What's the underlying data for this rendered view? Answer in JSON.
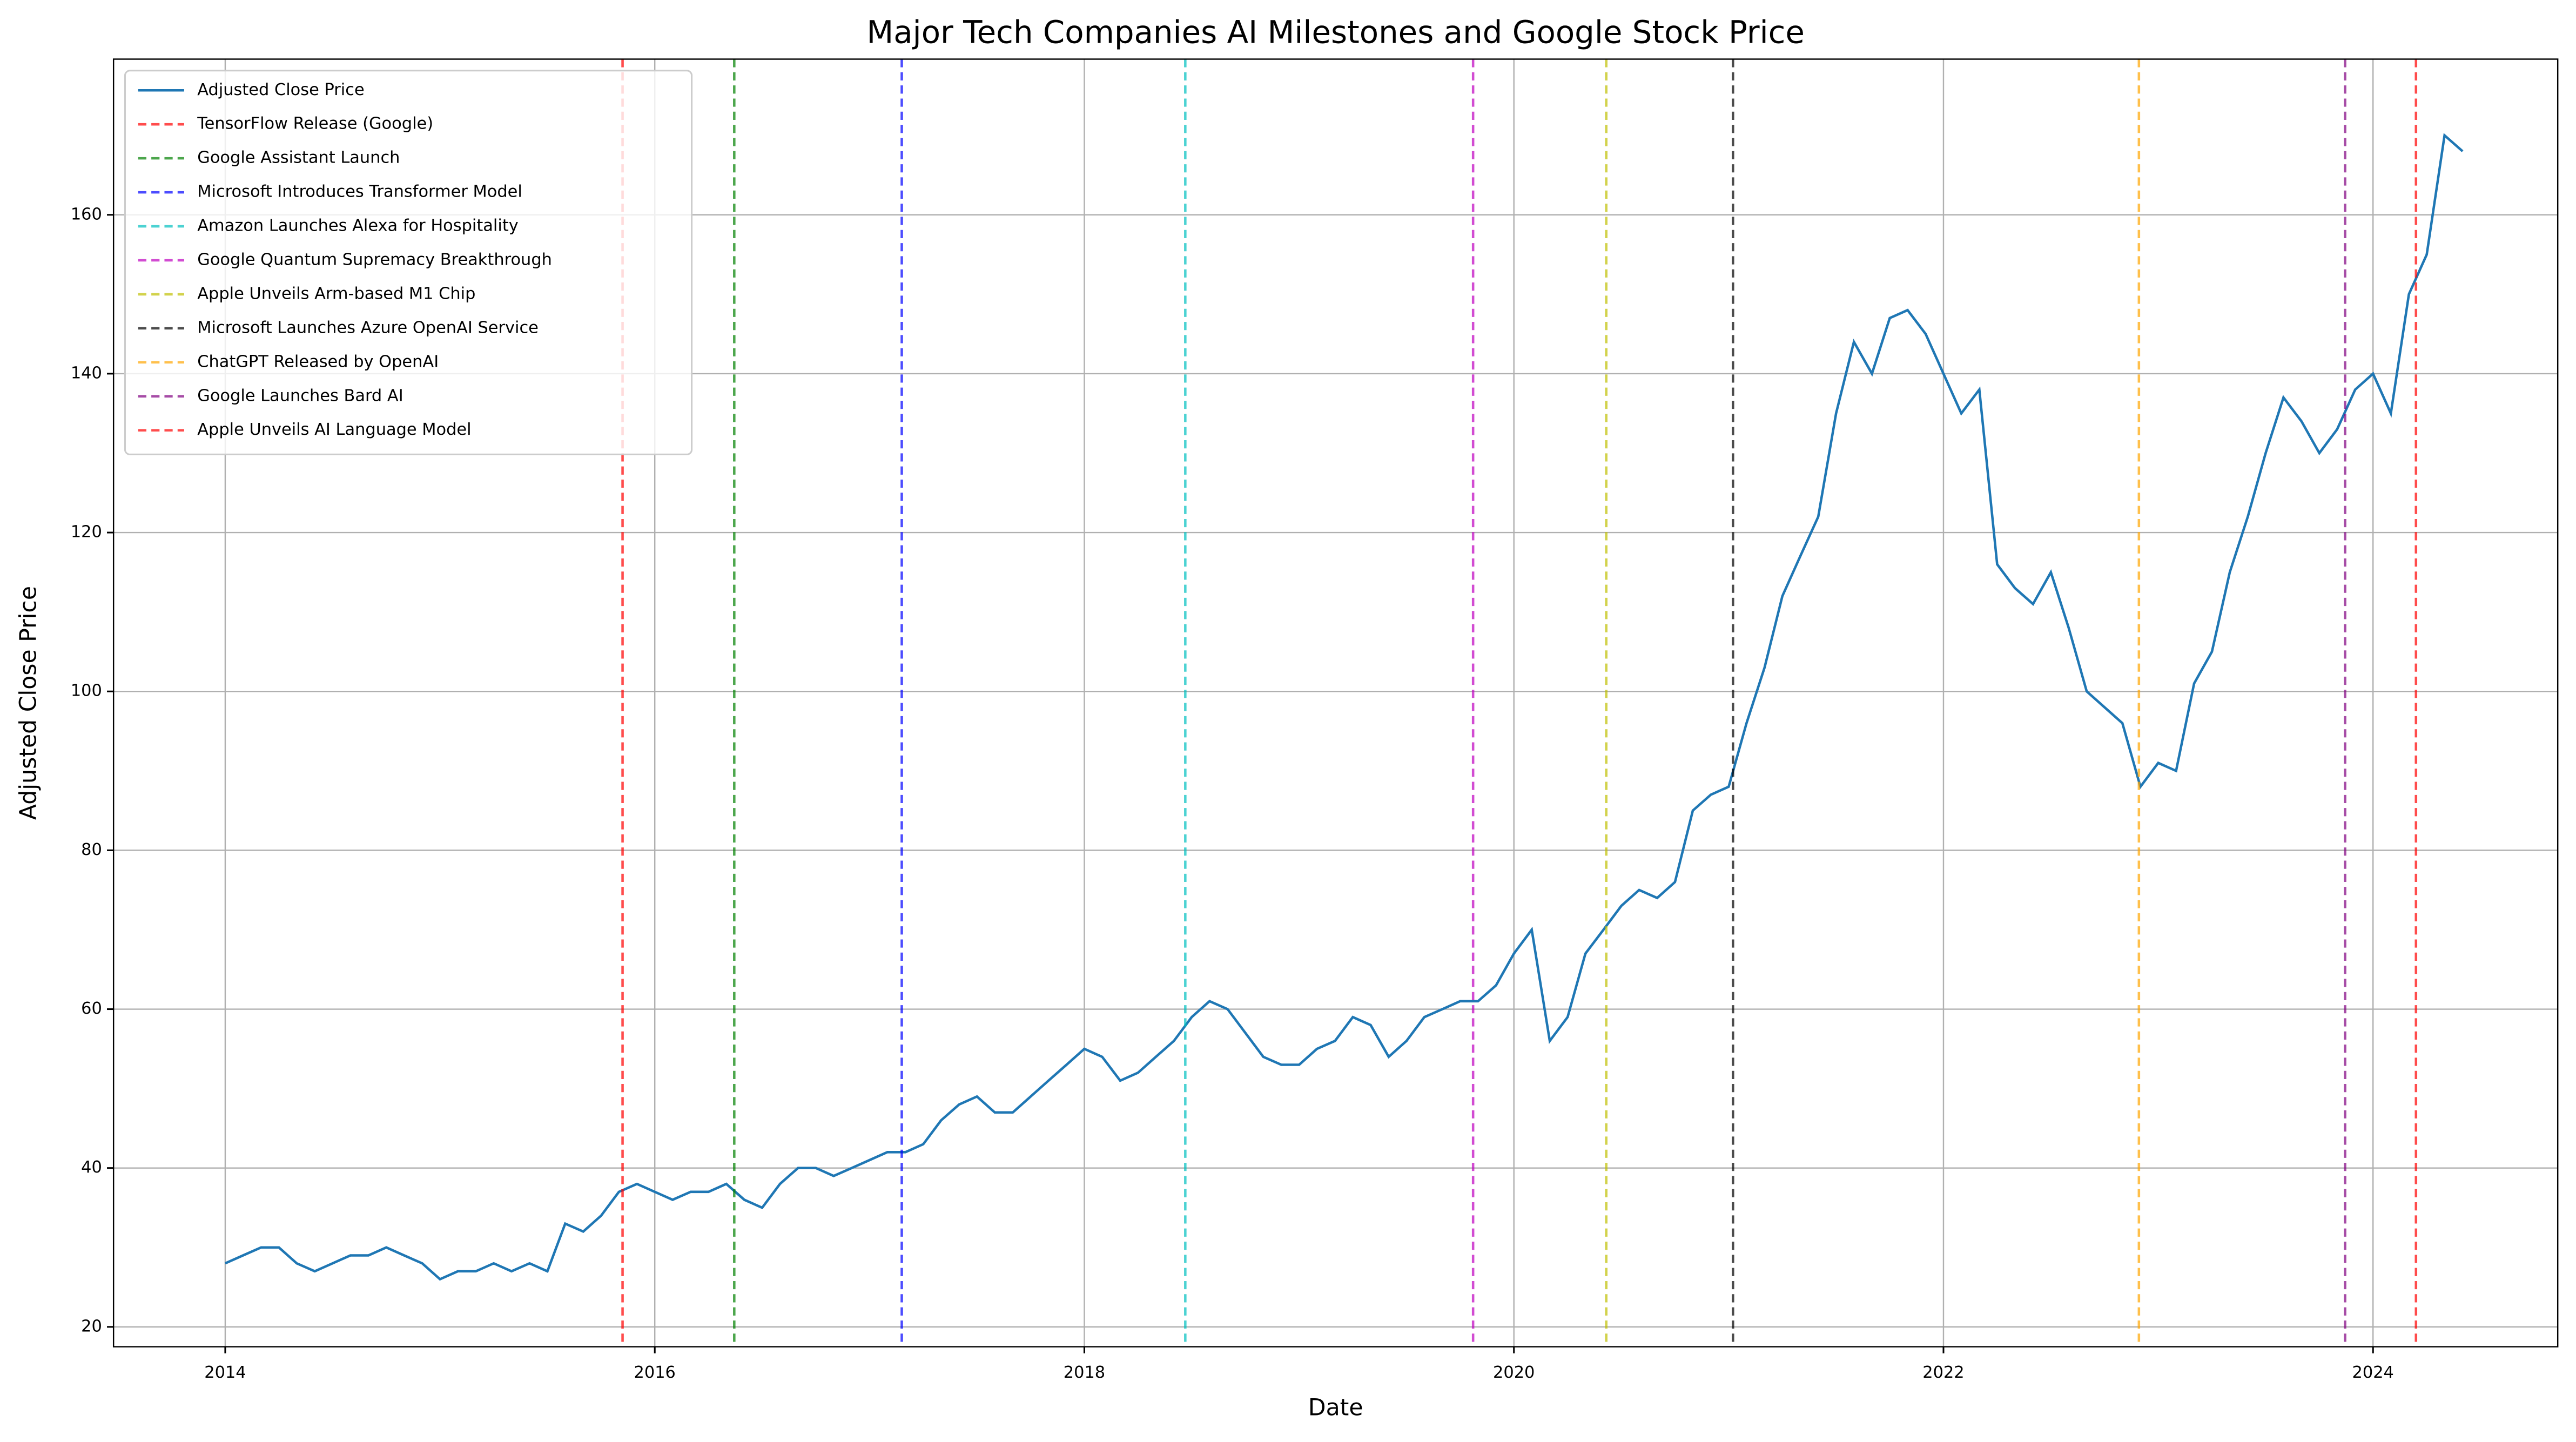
{
  "chart_data": {
    "type": "line",
    "title": "Major Tech Companies AI Milestones and Google Stock Price",
    "x_label": "Date",
    "y_label": "Adjusted Close Price",
    "x": [
      2014.0,
      2014.083,
      2014.167,
      2014.25,
      2014.333,
      2014.417,
      2014.5,
      2014.583,
      2014.667,
      2014.75,
      2014.833,
      2014.917,
      2015.0,
      2015.083,
      2015.167,
      2015.25,
      2015.333,
      2015.417,
      2015.5,
      2015.583,
      2015.667,
      2015.75,
      2015.833,
      2015.917,
      2016.0,
      2016.083,
      2016.167,
      2016.25,
      2016.333,
      2016.417,
      2016.5,
      2016.583,
      2016.667,
      2016.75,
      2016.833,
      2016.917,
      2017.0,
      2017.083,
      2017.167,
      2017.25,
      2017.333,
      2017.417,
      2017.5,
      2017.583,
      2017.667,
      2017.75,
      2017.833,
      2017.917,
      2018.0,
      2018.083,
      2018.167,
      2018.25,
      2018.333,
      2018.417,
      2018.5,
      2018.583,
      2018.667,
      2018.75,
      2018.833,
      2018.917,
      2019.0,
      2019.083,
      2019.167,
      2019.25,
      2019.333,
      2019.417,
      2019.5,
      2019.583,
      2019.667,
      2019.75,
      2019.833,
      2019.917,
      2020.0,
      2020.083,
      2020.167,
      2020.25,
      2020.333,
      2020.417,
      2020.5,
      2020.583,
      2020.667,
      2020.75,
      2020.833,
      2020.917,
      2021.0,
      2021.083,
      2021.167,
      2021.25,
      2021.333,
      2021.417,
      2021.5,
      2021.583,
      2021.667,
      2021.75,
      2021.833,
      2021.917,
      2022.0,
      2022.083,
      2022.167,
      2022.25,
      2022.333,
      2022.417,
      2022.5,
      2022.583,
      2022.667,
      2022.75,
      2022.833,
      2022.917,
      2023.0,
      2023.083,
      2023.167,
      2023.25,
      2023.333,
      2023.417,
      2023.5,
      2023.583,
      2023.667,
      2023.75,
      2023.833,
      2023.917,
      2024.0,
      2024.083,
      2024.167,
      2024.25,
      2024.333,
      2024.417
    ],
    "series": [
      {
        "name": "Adjusted Close Price",
        "color": "#1f77b4",
        "values": [
          28,
          29,
          30,
          30,
          28,
          27,
          28,
          29,
          29,
          30,
          29,
          28,
          26,
          27,
          27,
          28,
          27,
          28,
          27,
          33,
          32,
          34,
          37,
          38,
          37,
          36,
          37,
          37,
          38,
          36,
          35,
          38,
          40,
          40,
          39,
          40,
          41,
          42,
          42,
          43,
          46,
          48,
          49,
          47,
          47,
          49,
          51,
          53,
          55,
          54,
          51,
          52,
          54,
          56,
          59,
          61,
          60,
          57,
          54,
          53,
          53,
          55,
          56,
          59,
          58,
          54,
          56,
          59,
          60,
          61,
          61,
          63,
          67,
          70,
          56,
          59,
          67,
          70,
          73,
          75,
          74,
          76,
          85,
          87,
          88,
          96,
          103,
          112,
          117,
          122,
          135,
          144,
          140,
          147,
          148,
          145,
          140,
          135,
          138,
          116,
          113,
          111,
          115,
          108,
          100,
          98,
          96,
          88,
          91,
          90,
          101,
          105,
          115,
          122,
          130,
          137,
          134,
          130,
          133,
          138,
          140,
          135,
          150,
          155,
          170,
          168
        ]
      }
    ],
    "milestones": [
      {
        "name": "TensorFlow Release (Google)",
        "x": 2015.85,
        "color": "#ff0000"
      },
      {
        "name": "Google Assistant Launch",
        "x": 2016.37,
        "color": "#008000"
      },
      {
        "name": "Microsoft Introduces Transformer Model",
        "x": 2017.15,
        "color": "#0000ff"
      },
      {
        "name": "Amazon Launches Alexa for Hospitality",
        "x": 2018.47,
        "color": "#00bfbf"
      },
      {
        "name": "Google Quantum Supremacy Breakthrough",
        "x": 2019.81,
        "color": "#bf00bf"
      },
      {
        "name": "Apple Unveils Arm-based M1 Chip",
        "x": 2020.43,
        "color": "#bfbf00"
      },
      {
        "name": "Microsoft Launches Azure OpenAI Service",
        "x": 2021.02,
        "color": "#000000"
      },
      {
        "name": "ChatGPT Released by OpenAI",
        "x": 2022.91,
        "color": "#ffa500"
      },
      {
        "name": "Google Launches Bard AI",
        "x": 2023.87,
        "color": "#800080"
      },
      {
        "name": "Apple Unveils AI Language Model",
        "x": 2024.2,
        "color": "#ff0000"
      }
    ],
    "xlim": [
      2013.48,
      2024.86
    ],
    "ylim": [
      17.5,
      179.6
    ],
    "xticks": [
      2014,
      2016,
      2018,
      2020,
      2022,
      2024
    ],
    "yticks": [
      20,
      40,
      60,
      80,
      100,
      120,
      140,
      160
    ],
    "grid": true,
    "legend": "upper left"
  }
}
